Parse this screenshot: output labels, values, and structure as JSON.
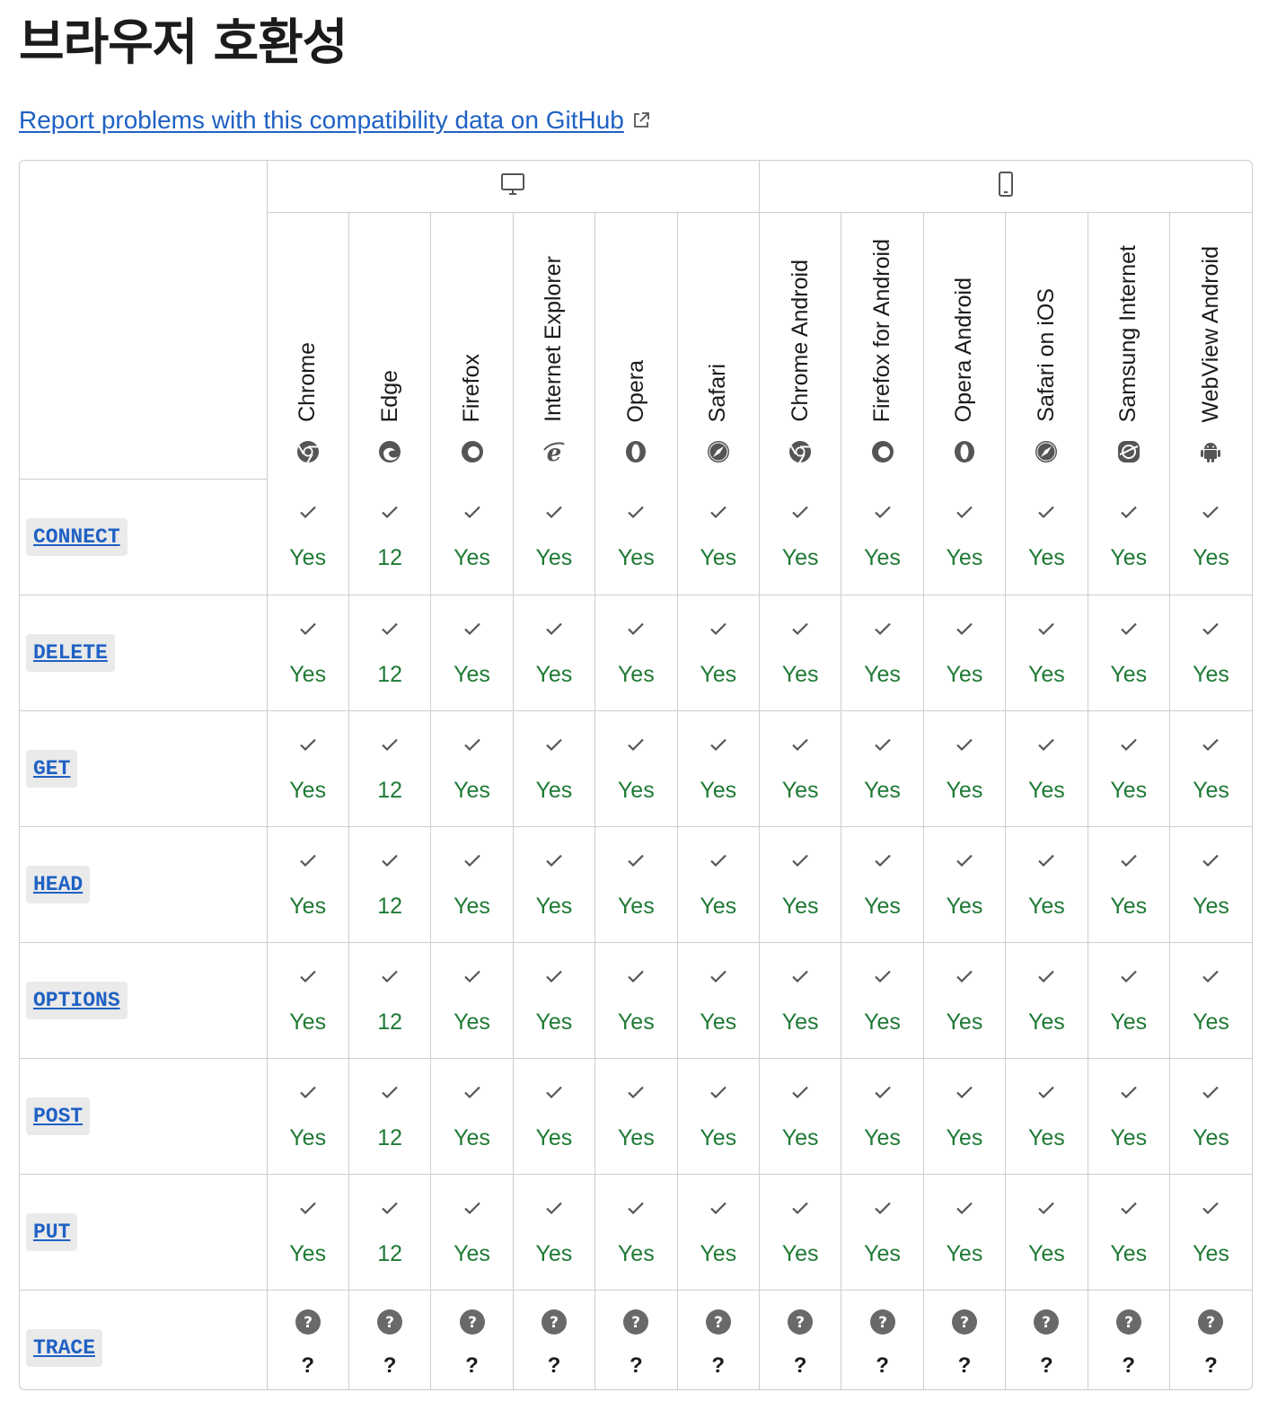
{
  "page": {
    "title": "브라우저 호환성",
    "report_link": "Report problems with this compatibility data on GitHub"
  },
  "platforms": [
    {
      "name": "desktop",
      "icon": "desktop-icon"
    },
    {
      "name": "mobile",
      "icon": "mobile-icon"
    }
  ],
  "browsers": [
    {
      "name": "Chrome",
      "icon": "chrome-icon"
    },
    {
      "name": "Edge",
      "icon": "edge-icon"
    },
    {
      "name": "Firefox",
      "icon": "firefox-icon"
    },
    {
      "name": "Internet Explorer",
      "icon": "internet-explorer-icon"
    },
    {
      "name": "Opera",
      "icon": "opera-icon"
    },
    {
      "name": "Safari",
      "icon": "safari-icon"
    },
    {
      "name": "Chrome Android",
      "icon": "chrome-icon"
    },
    {
      "name": "Firefox for Android",
      "icon": "firefox-icon"
    },
    {
      "name": "Opera Android",
      "icon": "opera-icon"
    },
    {
      "name": "Safari on iOS",
      "icon": "safari-icon"
    },
    {
      "name": "Samsung Internet",
      "icon": "samsung-internet-icon"
    },
    {
      "name": "WebView Android",
      "icon": "android-icon"
    }
  ],
  "rows": [
    {
      "feature": "CONNECT",
      "support": "yes",
      "values": [
        "Yes",
        "12",
        "Yes",
        "Yes",
        "Yes",
        "Yes",
        "Yes",
        "Yes",
        "Yes",
        "Yes",
        "Yes",
        "Yes"
      ]
    },
    {
      "feature": "DELETE",
      "support": "yes",
      "values": [
        "Yes",
        "12",
        "Yes",
        "Yes",
        "Yes",
        "Yes",
        "Yes",
        "Yes",
        "Yes",
        "Yes",
        "Yes",
        "Yes"
      ]
    },
    {
      "feature": "GET",
      "support": "yes",
      "values": [
        "Yes",
        "12",
        "Yes",
        "Yes",
        "Yes",
        "Yes",
        "Yes",
        "Yes",
        "Yes",
        "Yes",
        "Yes",
        "Yes"
      ]
    },
    {
      "feature": "HEAD",
      "support": "yes",
      "values": [
        "Yes",
        "12",
        "Yes",
        "Yes",
        "Yes",
        "Yes",
        "Yes",
        "Yes",
        "Yes",
        "Yes",
        "Yes",
        "Yes"
      ]
    },
    {
      "feature": "OPTIONS",
      "support": "yes",
      "values": [
        "Yes",
        "12",
        "Yes",
        "Yes",
        "Yes",
        "Yes",
        "Yes",
        "Yes",
        "Yes",
        "Yes",
        "Yes",
        "Yes"
      ]
    },
    {
      "feature": "POST",
      "support": "yes",
      "values": [
        "Yes",
        "12",
        "Yes",
        "Yes",
        "Yes",
        "Yes",
        "Yes",
        "Yes",
        "Yes",
        "Yes",
        "Yes",
        "Yes"
      ]
    },
    {
      "feature": "PUT",
      "support": "yes",
      "values": [
        "Yes",
        "12",
        "Yes",
        "Yes",
        "Yes",
        "Yes",
        "Yes",
        "Yes",
        "Yes",
        "Yes",
        "Yes",
        "Yes"
      ]
    },
    {
      "feature": "TRACE",
      "support": "unknown",
      "values": [
        "?",
        "?",
        "?",
        "?",
        "?",
        "?",
        "?",
        "?",
        "?",
        "?",
        "?",
        "?"
      ]
    }
  ],
  "colors": {
    "link": "#1f61c4",
    "supported_text": "#1e7a34",
    "border": "#cdcdcd",
    "feature_bg": "#eaeaea",
    "unknown_icon": "#696969"
  }
}
